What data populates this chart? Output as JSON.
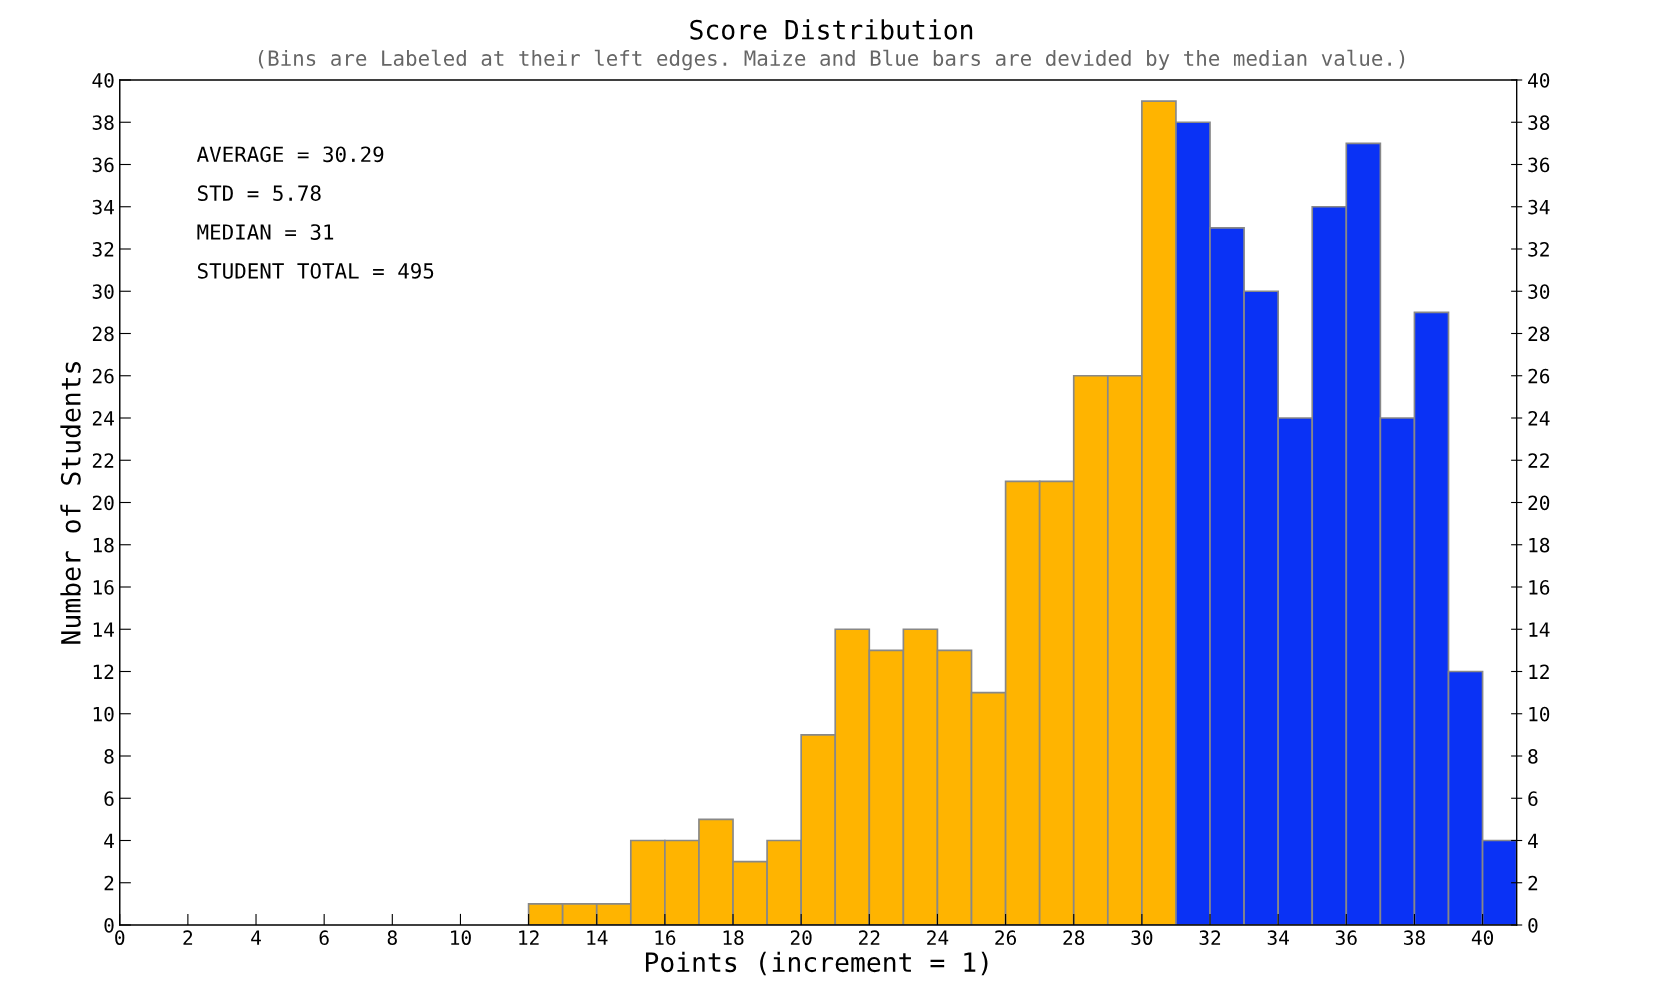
{
  "chart_data": {
    "type": "histogram",
    "title": "Score Distribution",
    "subtitle": "(Bins are Labeled at their left edges. Maize and Blue bars are devided by the median value.)",
    "xlabel": "Points (increment = 1)",
    "ylabel": "Number of Students",
    "bins": [
      12,
      13,
      14,
      15,
      16,
      17,
      18,
      19,
      20,
      21,
      22,
      23,
      24,
      25,
      26,
      27,
      28,
      29,
      30,
      31,
      32,
      33,
      34,
      35,
      36,
      37,
      38,
      39,
      40,
      41
    ],
    "values": [
      1,
      1,
      1,
      4,
      4,
      5,
      3,
      4,
      9,
      14,
      13,
      14,
      13,
      11,
      21,
      21,
      26,
      26,
      39,
      38,
      33,
      30,
      24,
      34,
      37,
      24,
      29,
      12,
      4
    ],
    "colors": [
      "#ffb400",
      "#ffb400",
      "#ffb400",
      "#ffb400",
      "#ffb400",
      "#ffb400",
      "#ffb400",
      "#ffb400",
      "#ffb400",
      "#ffb400",
      "#ffb400",
      "#ffb400",
      "#ffb400",
      "#ffb400",
      "#ffb400",
      "#ffb400",
      "#ffb400",
      "#ffb400",
      "#ffb400",
      "#0a32f5",
      "#0a32f5",
      "#0a32f5",
      "#0a32f5",
      "#0a32f5",
      "#0a32f5",
      "#0a32f5",
      "#0a32f5",
      "#0a32f5",
      "#0a32f5"
    ],
    "xlim": [
      0,
      41
    ],
    "xticks": [
      0,
      2,
      4,
      6,
      8,
      10,
      12,
      14,
      16,
      18,
      20,
      22,
      24,
      26,
      28,
      30,
      32,
      34,
      36,
      38,
      40
    ],
    "ylim": [
      0,
      40
    ],
    "yticks": [
      0,
      2,
      4,
      6,
      8,
      10,
      12,
      14,
      16,
      18,
      20,
      22,
      24,
      26,
      28,
      30,
      32,
      34,
      36,
      38,
      40
    ],
    "y2lim": [
      0,
      40
    ],
    "y2ticks": [
      0,
      2,
      4,
      6,
      8,
      10,
      12,
      14,
      16,
      18,
      20,
      22,
      24,
      26,
      28,
      30,
      32,
      34,
      36,
      38,
      40
    ],
    "annotations": [
      "AVERAGE = 30.29",
      "STD = 5.78",
      "MEDIAN = 31",
      "STUDENT TOTAL = 495"
    ],
    "grid": false,
    "legend": false
  }
}
